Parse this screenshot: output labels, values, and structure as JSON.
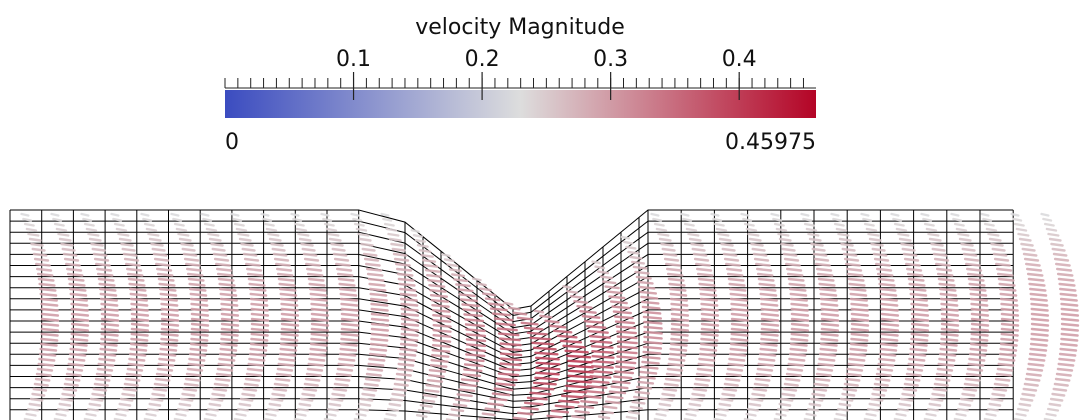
{
  "colorbar": {
    "title": "velocity Magnitude",
    "min": 0,
    "max": 0.45975,
    "ticks": [
      0.1,
      0.2,
      0.3,
      0.4
    ],
    "colors": [
      "#3b4cc0",
      "#dddddd",
      "#b40426"
    ]
  }
}
